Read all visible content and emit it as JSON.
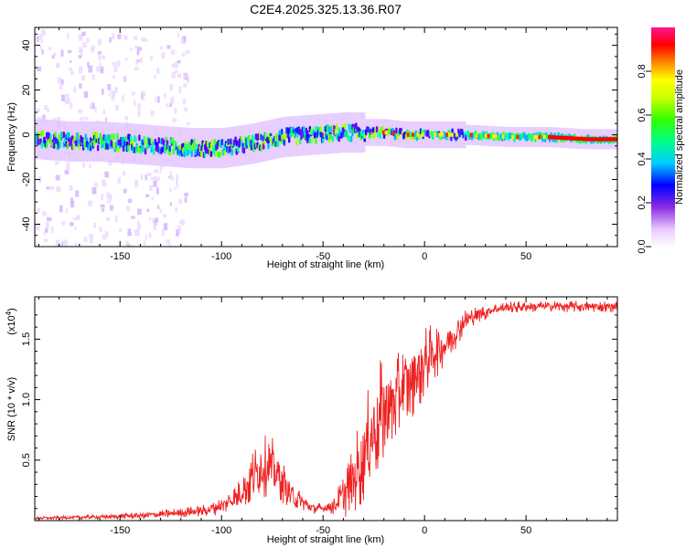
{
  "title": "C2E4.2025.325.13.36.R07",
  "chart_data": [
    {
      "type": "heatmap",
      "name": "spectrogram",
      "xlabel": "Height of straight line (km)",
      "ylabel": "Frequency (Hz)",
      "xlim": [
        -192,
        95
      ],
      "ylim": [
        -50,
        48
      ],
      "x_ticks": [
        -150,
        -100,
        -50,
        0,
        50
      ],
      "x_tick_labels": [
        "-150",
        "-100",
        "-50",
        "0",
        "50"
      ],
      "y_ticks": [
        -40,
        -20,
        0,
        20,
        40
      ],
      "y_tick_labels": [
        "-40",
        "-20",
        "0",
        "20",
        "40"
      ],
      "ridge": {
        "x": [
          -190,
          -175,
          -160,
          -145,
          -130,
          -115,
          -100,
          -85,
          -70,
          -55,
          -40,
          -30,
          -20,
          -10,
          0,
          20,
          40,
          60,
          80,
          95
        ],
        "frequency": [
          -2,
          -3,
          -3,
          -4,
          -5,
          -6,
          -6,
          -4,
          -1,
          0,
          1,
          1,
          1,
          0,
          0,
          0,
          -1,
          -1,
          -2,
          -2
        ]
      },
      "colorbar": {
        "label": "Normalized spectral amplitude",
        "range": [
          0,
          1
        ],
        "ticks": [
          0.0,
          0.2,
          0.4,
          0.6,
          0.8
        ],
        "tick_labels": [
          "0.0",
          "0.2",
          "0.4",
          "0.6",
          "0.8"
        ]
      }
    },
    {
      "type": "line",
      "name": "snr",
      "xlabel": "Height of straight line (km)",
      "ylabel": "SNR (10 * v/v)",
      "multiplier_label": "(x10",
      "multiplier_exp": "4",
      "multiplier_close": ")",
      "xlim": [
        -192,
        95
      ],
      "ylim": [
        0,
        1.85
      ],
      "x_ticks": [
        -150,
        -100,
        -50,
        0,
        50
      ],
      "x_tick_labels": [
        "-150",
        "-100",
        "-50",
        "0",
        "50"
      ],
      "y_ticks": [
        0.5,
        1.0,
        1.5
      ],
      "y_tick_labels": [
        "0.5",
        "1.0",
        "1.5"
      ],
      "line_color": "#ee2222",
      "envelope": {
        "x": [
          -192,
          -160,
          -130,
          -110,
          -100,
          -92,
          -85,
          -80,
          -75,
          -70,
          -65,
          -60,
          -55,
          -50,
          -45,
          -40,
          -35,
          -30,
          -25,
          -20,
          -15,
          -10,
          -5,
          0,
          5,
          10,
          15,
          20,
          25,
          30,
          35,
          40,
          50,
          60,
          70,
          80,
          95
        ],
        "mean": [
          0.02,
          0.03,
          0.05,
          0.08,
          0.12,
          0.2,
          0.35,
          0.45,
          0.45,
          0.32,
          0.2,
          0.15,
          0.1,
          0.1,
          0.12,
          0.2,
          0.35,
          0.55,
          0.75,
          0.9,
          1.0,
          1.1,
          1.2,
          1.3,
          1.4,
          1.45,
          1.55,
          1.65,
          1.7,
          1.72,
          1.75,
          1.76,
          1.77,
          1.77,
          1.77,
          1.77,
          1.77
        ],
        "spread": [
          0.01,
          0.015,
          0.03,
          0.04,
          0.06,
          0.1,
          0.2,
          0.22,
          0.2,
          0.15,
          0.1,
          0.06,
          0.04,
          0.04,
          0.06,
          0.15,
          0.25,
          0.35,
          0.4,
          0.4,
          0.35,
          0.3,
          0.3,
          0.25,
          0.2,
          0.15,
          0.12,
          0.08,
          0.06,
          0.05,
          0.04,
          0.04,
          0.04,
          0.04,
          0.04,
          0.04,
          0.04
        ]
      }
    }
  ]
}
